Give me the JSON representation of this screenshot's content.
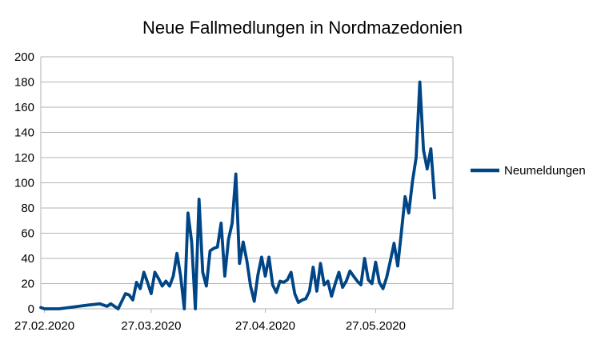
{
  "chart_data": {
    "type": "line",
    "title": "Neue Fallmedlungen in Nordmazedonien",
    "xlabel": "",
    "ylabel": "",
    "ylim": [
      0,
      200
    ],
    "yticks": [
      0,
      20,
      40,
      60,
      80,
      100,
      120,
      140,
      160,
      180,
      200
    ],
    "x_tick_labels": [
      "27.02.2020",
      "27.03.2020",
      "27.04.2020",
      "27.05.2020"
    ],
    "x_range": [
      "2020-02-26",
      "2020-06-17"
    ],
    "grid": "horizontal",
    "legend_position": "right",
    "color": "#004586",
    "series": [
      {
        "name": "Neumeldungen",
        "points": [
          [
            "2020-02-26",
            1
          ],
          [
            "2020-02-27",
            0
          ],
          [
            "2020-03-02",
            0
          ],
          [
            "2020-03-10",
            3
          ],
          [
            "2020-03-13",
            4
          ],
          [
            "2020-03-14",
            3
          ],
          [
            "2020-03-15",
            2
          ],
          [
            "2020-03-16",
            4
          ],
          [
            "2020-03-18",
            0
          ],
          [
            "2020-03-19",
            6
          ],
          [
            "2020-03-20",
            12
          ],
          [
            "2020-03-21",
            11
          ],
          [
            "2020-03-22",
            7
          ],
          [
            "2020-03-23",
            21
          ],
          [
            "2020-03-24",
            16
          ],
          [
            "2020-03-25",
            29
          ],
          [
            "2020-03-26",
            21
          ],
          [
            "2020-03-27",
            12
          ],
          [
            "2020-03-28",
            29
          ],
          [
            "2020-03-29",
            24
          ],
          [
            "2020-03-30",
            18
          ],
          [
            "2020-03-31",
            22
          ],
          [
            "2020-04-01",
            18
          ],
          [
            "2020-04-02",
            26
          ],
          [
            "2020-04-03",
            44
          ],
          [
            "2020-04-04",
            26
          ],
          [
            "2020-04-05",
            0
          ],
          [
            "2020-04-06",
            76
          ],
          [
            "2020-04-07",
            53
          ],
          [
            "2020-04-08",
            0
          ],
          [
            "2020-04-09",
            87
          ],
          [
            "2020-04-10",
            29
          ],
          [
            "2020-04-11",
            18
          ],
          [
            "2020-04-12",
            46
          ],
          [
            "2020-04-13",
            48
          ],
          [
            "2020-04-14",
            49
          ],
          [
            "2020-04-15",
            68
          ],
          [
            "2020-04-16",
            26
          ],
          [
            "2020-04-17",
            55
          ],
          [
            "2020-04-18",
            68
          ],
          [
            "2020-04-19",
            107
          ],
          [
            "2020-04-20",
            36
          ],
          [
            "2020-04-21",
            53
          ],
          [
            "2020-04-22",
            38
          ],
          [
            "2020-04-23",
            18
          ],
          [
            "2020-04-24",
            6
          ],
          [
            "2020-04-25",
            27
          ],
          [
            "2020-04-26",
            41
          ],
          [
            "2020-04-27",
            26
          ],
          [
            "2020-04-28",
            41
          ],
          [
            "2020-04-29",
            19
          ],
          [
            "2020-04-30",
            13
          ],
          [
            "2020-05-01",
            22
          ],
          [
            "2020-05-02",
            21
          ],
          [
            "2020-05-03",
            23
          ],
          [
            "2020-05-04",
            29
          ],
          [
            "2020-05-05",
            12
          ],
          [
            "2020-05-06",
            5
          ],
          [
            "2020-05-07",
            7
          ],
          [
            "2020-05-08",
            8
          ],
          [
            "2020-05-09",
            14
          ],
          [
            "2020-05-10",
            33
          ],
          [
            "2020-05-11",
            14
          ],
          [
            "2020-05-12",
            36
          ],
          [
            "2020-05-13",
            19
          ],
          [
            "2020-05-14",
            22
          ],
          [
            "2020-05-15",
            10
          ],
          [
            "2020-05-16",
            20
          ],
          [
            "2020-05-17",
            29
          ],
          [
            "2020-05-18",
            17
          ],
          [
            "2020-05-19",
            22
          ],
          [
            "2020-05-20",
            30
          ],
          [
            "2020-05-21",
            26
          ],
          [
            "2020-05-22",
            22
          ],
          [
            "2020-05-23",
            19
          ],
          [
            "2020-05-24",
            40
          ],
          [
            "2020-05-25",
            23
          ],
          [
            "2020-05-26",
            20
          ],
          [
            "2020-05-27",
            37
          ],
          [
            "2020-05-28",
            21
          ],
          [
            "2020-05-29",
            16
          ],
          [
            "2020-05-30",
            25
          ],
          [
            "2020-05-31",
            38
          ],
          [
            "2020-06-01",
            52
          ],
          [
            "2020-06-02",
            34
          ],
          [
            "2020-06-03",
            61
          ],
          [
            "2020-06-04",
            89
          ],
          [
            "2020-06-05",
            76
          ],
          [
            "2020-06-06",
            101
          ],
          [
            "2020-06-07",
            120
          ],
          [
            "2020-06-08",
            180
          ],
          [
            "2020-06-09",
            126
          ],
          [
            "2020-06-10",
            111
          ],
          [
            "2020-06-11",
            127
          ],
          [
            "2020-06-12",
            88
          ]
        ]
      }
    ]
  }
}
